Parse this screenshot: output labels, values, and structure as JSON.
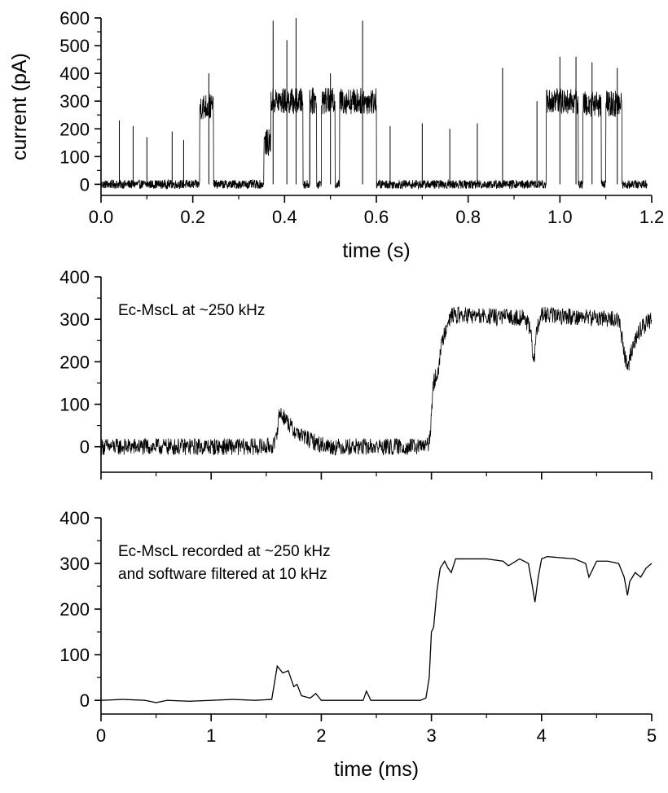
{
  "chart_data": [
    {
      "type": "line",
      "xlabel": "time (s)",
      "ylabel": "current (pA)",
      "xlim": [
        0,
        1.2
      ],
      "ylim": [
        -40,
        600
      ],
      "xticks": [
        "0.0",
        "0.2",
        "0.4",
        "0.6",
        "0.8",
        "1.0",
        "1.2"
      ],
      "yticks": [
        "0",
        "100",
        "200",
        "300",
        "400",
        "500",
        "600"
      ],
      "annotation": "",
      "noise": 16,
      "segments": [
        {
          "x": [
            0.0,
            0.215
          ],
          "level": 0
        },
        {
          "x": [
            0.215,
            0.245
          ],
          "level": 280
        },
        {
          "x": [
            0.245,
            0.355
          ],
          "level": 0
        },
        {
          "x": [
            0.355,
            0.37
          ],
          "level": 150
        },
        {
          "x": [
            0.37,
            0.44
          ],
          "level": 300
        },
        {
          "x": [
            0.44,
            0.455
          ],
          "level": 0
        },
        {
          "x": [
            0.455,
            0.47
          ],
          "level": 300
        },
        {
          "x": [
            0.47,
            0.48
          ],
          "level": 0
        },
        {
          "x": [
            0.48,
            0.51
          ],
          "level": 300
        },
        {
          "x": [
            0.51,
            0.52
          ],
          "level": 0
        },
        {
          "x": [
            0.52,
            0.6
          ],
          "level": 300
        },
        {
          "x": [
            0.6,
            0.97
          ],
          "level": 0
        },
        {
          "x": [
            0.97,
            1.04
          ],
          "level": 300
        },
        {
          "x": [
            1.04,
            1.05
          ],
          "level": 0
        },
        {
          "x": [
            1.05,
            1.09
          ],
          "level": 290
        },
        {
          "x": [
            1.09,
            1.1
          ],
          "level": 0
        },
        {
          "x": [
            1.1,
            1.135
          ],
          "level": 290
        },
        {
          "x": [
            1.135,
            1.19
          ],
          "level": 0
        }
      ],
      "spikes": [
        [
          0.04,
          230
        ],
        [
          0.07,
          210
        ],
        [
          0.1,
          170
        ],
        [
          0.155,
          190
        ],
        [
          0.18,
          160
        ],
        [
          0.235,
          400
        ],
        [
          0.375,
          590
        ],
        [
          0.405,
          520
        ],
        [
          0.425,
          600
        ],
        [
          0.455,
          340
        ],
        [
          0.5,
          400
        ],
        [
          0.57,
          590
        ],
        [
          0.63,
          210
        ],
        [
          0.7,
          220
        ],
        [
          0.76,
          200
        ],
        [
          0.82,
          220
        ],
        [
          0.875,
          420
        ],
        [
          0.95,
          300
        ],
        [
          1.0,
          460
        ],
        [
          1.035,
          460
        ],
        [
          1.07,
          440
        ],
        [
          1.125,
          420
        ]
      ]
    },
    {
      "type": "line",
      "xlabel": "",
      "ylabel": "",
      "xlim": [
        0,
        5
      ],
      "ylim": [
        -60,
        400
      ],
      "xticks": [
        "0",
        "1",
        "2",
        "3",
        "4",
        "5"
      ],
      "show_xtick_labels": false,
      "yticks": [
        "0",
        "100",
        "200",
        "300",
        "400"
      ],
      "annotation": "Ec-MscL at ~250 kHz",
      "noise": 20,
      "x": [
        0,
        1.5,
        1.58,
        1.62,
        1.68,
        1.74,
        1.8,
        1.9,
        2.0,
        2.1,
        2.39,
        2.41,
        2.9,
        2.98,
        3.02,
        3.06,
        3.1,
        3.15,
        3.2,
        3.6,
        3.85,
        3.9,
        3.93,
        3.96,
        4.0,
        4.4,
        4.7,
        4.78,
        4.82,
        4.88,
        4.95,
        5.0
      ],
      "y": [
        0,
        0,
        5,
        80,
        65,
        40,
        30,
        15,
        5,
        0,
        0,
        0,
        0,
        5,
        150,
        180,
        250,
        300,
        310,
        305,
        305,
        270,
        200,
        280,
        310,
        305,
        300,
        180,
        230,
        270,
        290,
        300
      ]
    },
    {
      "type": "line",
      "xlabel": "time (ms)",
      "ylabel": "",
      "xlim": [
        0,
        5
      ],
      "ylim": [
        -30,
        400
      ],
      "xticks": [
        "0",
        "1",
        "2",
        "3",
        "4",
        "5"
      ],
      "yticks": [
        "0",
        "100",
        "200",
        "300",
        "400"
      ],
      "annotation": "Ec-MscL recorded at ~250 kHz\nand software filtered at 10 kHz",
      "noise": 0,
      "x": [
        0,
        0.2,
        0.4,
        0.5,
        0.6,
        0.8,
        1.0,
        1.2,
        1.4,
        1.55,
        1.6,
        1.65,
        1.7,
        1.75,
        1.78,
        1.82,
        1.9,
        1.95,
        2.0,
        2.3,
        2.38,
        2.41,
        2.45,
        2.9,
        2.95,
        2.98,
        3.0,
        3.02,
        3.05,
        3.08,
        3.12,
        3.15,
        3.18,
        3.22,
        3.3,
        3.5,
        3.65,
        3.7,
        3.8,
        3.88,
        3.91,
        3.94,
        3.97,
        4.0,
        4.05,
        4.3,
        4.4,
        4.43,
        4.47,
        4.5,
        4.6,
        4.7,
        4.75,
        4.78,
        4.8,
        4.85,
        4.9,
        4.95,
        5.0
      ],
      "y": [
        0,
        2,
        0,
        -5,
        0,
        -2,
        0,
        2,
        0,
        2,
        75,
        60,
        65,
        30,
        35,
        10,
        5,
        15,
        0,
        0,
        0,
        20,
        0,
        0,
        5,
        50,
        150,
        160,
        240,
        290,
        305,
        290,
        280,
        310,
        310,
        310,
        305,
        295,
        310,
        300,
        260,
        215,
        270,
        310,
        315,
        310,
        300,
        270,
        290,
        305,
        305,
        300,
        270,
        230,
        260,
        280,
        270,
        290,
        300
      ]
    }
  ]
}
